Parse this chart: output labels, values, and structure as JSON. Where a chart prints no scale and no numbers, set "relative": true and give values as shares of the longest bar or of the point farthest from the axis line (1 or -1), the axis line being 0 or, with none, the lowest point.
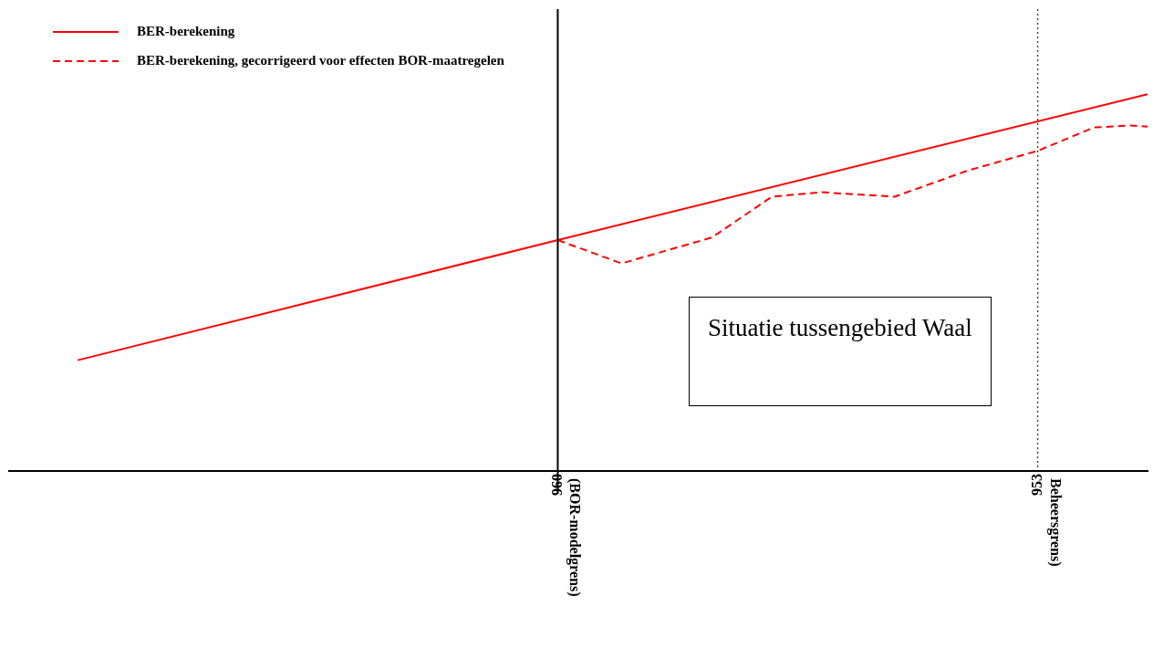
{
  "chart_data": {
    "type": "line",
    "relative": true,
    "annotations": [
      "Situatie tussengebied Waal"
    ],
    "xlim": [
      968,
      951.4
    ],
    "xticks": [
      960,
      953
    ],
    "series": [
      {
        "name": "BER-berekening",
        "color": "#ff0000",
        "line_style": "solid",
        "x": [
          967,
          960,
          951.4
        ],
        "values": [
          0.294,
          0.613,
          1
        ]
      },
      {
        "name": "BER-berekening, gecorrigeerd voor effecten BOR-maatregelen",
        "color": "#ff0000",
        "line_style": "dashed",
        "x": [
          960,
          959.07,
          957.75,
          956.88,
          956.16,
          955.09,
          954.03,
          953,
          952.18,
          951.65,
          951.4
        ],
        "values": [
          0.613,
          0.551,
          0.62,
          0.728,
          0.74,
          0.728,
          0.797,
          0.85,
          0.912,
          0.917,
          0.914
        ]
      }
    ],
    "ref_lines": [
      {
        "axis": "x",
        "value": 960,
        "label": "(BOR-modelgrens)",
        "color": "#000000",
        "line_style": "solid"
      },
      {
        "axis": "x",
        "value": 953,
        "label": "Beheersgrens)",
        "color": "#000000",
        "line_style": "dotted"
      }
    ],
    "grid": false,
    "legend": "top left",
    "marker": "none"
  }
}
